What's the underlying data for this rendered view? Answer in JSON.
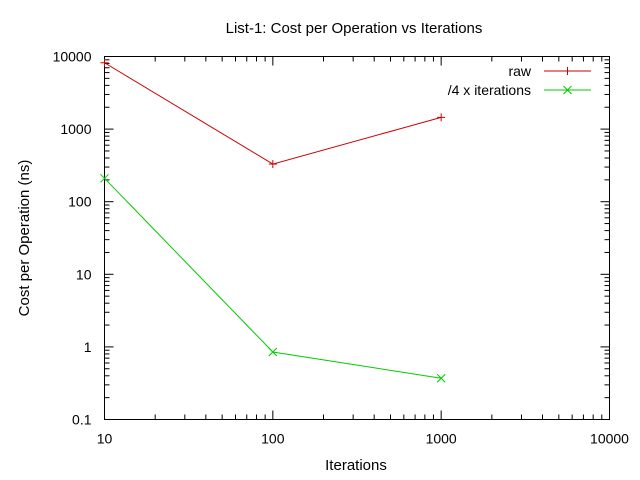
{
  "chart_data": {
    "type": "line",
    "title": "List-1: Cost per Operation vs Iterations",
    "xlabel": "Iterations",
    "ylabel": "Cost per Operation (ns)",
    "xscale": "log",
    "yscale": "log",
    "xlim": [
      10,
      10000
    ],
    "ylim": [
      0.1,
      10000
    ],
    "xticks": [
      10,
      100,
      1000,
      10000
    ],
    "xtick_labels": [
      "10",
      "100",
      "1000",
      "10000"
    ],
    "yticks": [
      0.1,
      1,
      10,
      100,
      1000,
      10000
    ],
    "ytick_labels": [
      "0.1",
      "1",
      "10",
      "100",
      "1000",
      "10000"
    ],
    "grid": false,
    "legend_position": "top-right",
    "series": [
      {
        "name": "raw",
        "color": "#cc0000",
        "marker": "plus",
        "x": [
          10,
          100,
          1000
        ],
        "y": [
          8200,
          330,
          1450
        ]
      },
      {
        "name": "/4 x iterations",
        "color": "#00cc00",
        "marker": "cross",
        "x": [
          10,
          100,
          1000
        ],
        "y": [
          210,
          0.85,
          0.37
        ]
      }
    ]
  }
}
